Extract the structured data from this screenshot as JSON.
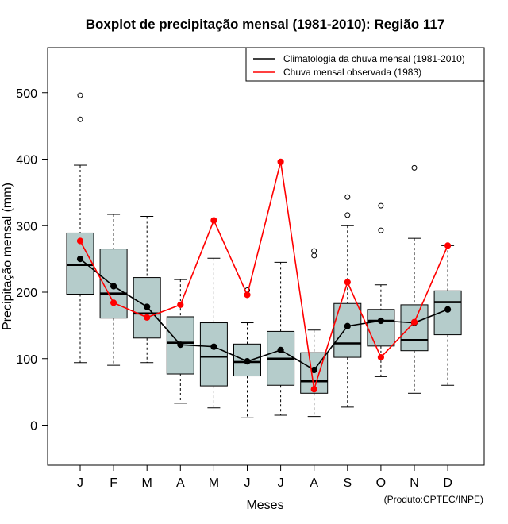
{
  "chart_data": {
    "type": "boxplot",
    "title": "Boxplot de precipitação mensal (1981-2010): Região 117",
    "xlabel": "Meses",
    "ylabel": "Precipitação mensal (mm)",
    "ylim": [
      -60,
      565
    ],
    "yticks": [
      0,
      100,
      200,
      300,
      400,
      500
    ],
    "categories": [
      "J",
      "F",
      "M",
      "A",
      "M",
      "J",
      "J",
      "A",
      "S",
      "O",
      "N",
      "D"
    ],
    "boxes": [
      {
        "whisker_low": 94,
        "q1": 197,
        "median": 241,
        "q3": 289,
        "whisker_high": 391,
        "outliers": [
          460,
          496
        ]
      },
      {
        "whisker_low": 90,
        "q1": 161,
        "median": 198,
        "q3": 265,
        "whisker_high": 317,
        "outliers": []
      },
      {
        "whisker_low": 94,
        "q1": 131,
        "median": 168,
        "q3": 222,
        "whisker_high": 314,
        "outliers": []
      },
      {
        "whisker_low": 33,
        "q1": 77,
        "median": 124,
        "q3": 163,
        "whisker_high": 219,
        "outliers": []
      },
      {
        "whisker_low": 26,
        "q1": 59,
        "median": 103,
        "q3": 154,
        "whisker_high": 251,
        "outliers": []
      },
      {
        "whisker_low": 11,
        "q1": 74,
        "median": 95,
        "q3": 122,
        "whisker_high": 154,
        "outliers": [
          203
        ]
      },
      {
        "whisker_low": 15,
        "q1": 60,
        "median": 100,
        "q3": 141,
        "whisker_high": 245,
        "outliers": []
      },
      {
        "whisker_low": 13,
        "q1": 48,
        "median": 66,
        "q3": 109,
        "whisker_high": 143,
        "outliers": [
          255,
          262
        ]
      },
      {
        "whisker_low": 27,
        "q1": 102,
        "median": 123,
        "q3": 183,
        "whisker_high": 300,
        "outliers": [
          316,
          343
        ]
      },
      {
        "whisker_low": 73,
        "q1": 119,
        "median": 157,
        "q3": 174,
        "whisker_high": 211,
        "outliers": [
          293,
          330
        ]
      },
      {
        "whisker_low": 48,
        "q1": 112,
        "median": 128,
        "q3": 181,
        "whisker_high": 281,
        "outliers": [
          387
        ]
      },
      {
        "whisker_low": 60,
        "q1": 136,
        "median": 185,
        "q3": 202,
        "whisker_high": 270,
        "outliers": []
      }
    ],
    "series": [
      {
        "name": "Climatologia da chuva mensal (1981-2010)",
        "color": "#000000",
        "values": [
          250,
          209,
          178,
          121,
          118,
          96,
          113,
          83,
          149,
          157,
          154,
          174
        ]
      },
      {
        "name": "Chuva mensal observada (1983)",
        "color": "#ff0000",
        "values": [
          277,
          184,
          162,
          181,
          308,
          196,
          396,
          54,
          215,
          102,
          155,
          270
        ]
      }
    ],
    "box_fill": "#b5cccb",
    "legend_position": "top-right",
    "credit": "(Produto:CPTEC/INPE)"
  }
}
